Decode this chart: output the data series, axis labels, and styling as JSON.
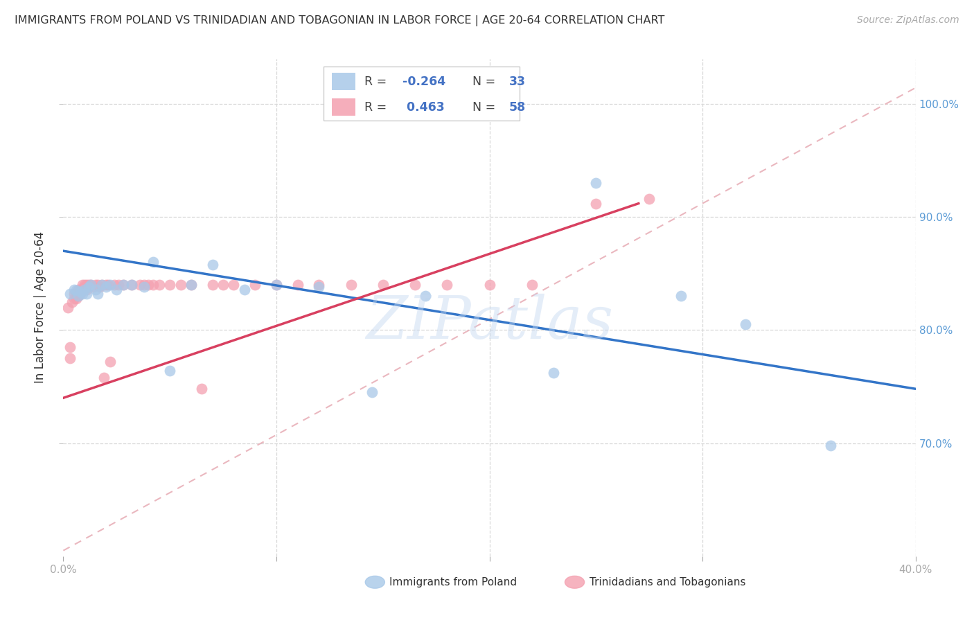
{
  "title": "IMMIGRANTS FROM POLAND VS TRINIDADIAN AND TOBAGONIAN IN LABOR FORCE | AGE 20-64 CORRELATION CHART",
  "source": "Source: ZipAtlas.com",
  "ylabel": "In Labor Force | Age 20-64",
  "xlim": [
    0.0,
    0.4
  ],
  "ylim": [
    0.6,
    1.04
  ],
  "ytick_positions": [
    0.7,
    0.8,
    0.9,
    1.0
  ],
  "ytick_labels": [
    "70.0%",
    "80.0%",
    "90.0%",
    "100.0%"
  ],
  "xtick_positions": [
    0.0,
    0.1,
    0.2,
    0.3,
    0.4
  ],
  "xtick_left_label": "0.0%",
  "xtick_right_label": "40.0%",
  "poland_R": -0.264,
  "poland_N": 33,
  "tnt_R": 0.463,
  "tnt_N": 58,
  "poland_color": "#a8c8e8",
  "tnt_color": "#f4a0b0",
  "poland_line_color": "#3375c8",
  "tnt_line_color": "#d84060",
  "diagonal_color": "#e8b0b8",
  "watermark": "ZIPatlas",
  "legend_label_poland": "Immigrants from Poland",
  "legend_label_tnt": "Trinidadians and Tobagonians",
  "poland_line_x0": 0.0,
  "poland_line_y0": 0.87,
  "poland_line_x1": 0.4,
  "poland_line_y1": 0.748,
  "tnt_line_x0": 0.0,
  "tnt_line_y0": 0.74,
  "tnt_line_x1": 0.27,
  "tnt_line_y1": 0.912,
  "poland_x": [
    0.003,
    0.005,
    0.006,
    0.007,
    0.008,
    0.009,
    0.01,
    0.011,
    0.012,
    0.013,
    0.015,
    0.016,
    0.018,
    0.02,
    0.022,
    0.025,
    0.028,
    0.032,
    0.038,
    0.042,
    0.05,
    0.06,
    0.07,
    0.085,
    0.1,
    0.12,
    0.145,
    0.17,
    0.23,
    0.25,
    0.29,
    0.32,
    0.36
  ],
  "poland_y": [
    0.832,
    0.836,
    0.835,
    0.83,
    0.834,
    0.832,
    0.836,
    0.832,
    0.838,
    0.84,
    0.836,
    0.832,
    0.84,
    0.838,
    0.84,
    0.836,
    0.84,
    0.84,
    0.838,
    0.86,
    0.764,
    0.84,
    0.858,
    0.836,
    0.84,
    0.838,
    0.745,
    0.83,
    0.762,
    0.93,
    0.83,
    0.805,
    0.698
  ],
  "tnt_x": [
    0.002,
    0.003,
    0.003,
    0.004,
    0.005,
    0.005,
    0.006,
    0.006,
    0.007,
    0.007,
    0.008,
    0.008,
    0.009,
    0.009,
    0.01,
    0.01,
    0.011,
    0.011,
    0.012,
    0.012,
    0.013,
    0.014,
    0.015,
    0.016,
    0.017,
    0.018,
    0.019,
    0.02,
    0.021,
    0.022,
    0.024,
    0.026,
    0.028,
    0.032,
    0.036,
    0.038,
    0.04,
    0.042,
    0.045,
    0.05,
    0.055,
    0.06,
    0.065,
    0.07,
    0.075,
    0.08,
    0.09,
    0.1,
    0.11,
    0.12,
    0.135,
    0.15,
    0.165,
    0.18,
    0.2,
    0.22,
    0.25,
    0.275
  ],
  "tnt_y": [
    0.82,
    0.785,
    0.775,
    0.825,
    0.832,
    0.828,
    0.832,
    0.828,
    0.836,
    0.83,
    0.836,
    0.832,
    0.84,
    0.836,
    0.84,
    0.838,
    0.836,
    0.84,
    0.84,
    0.838,
    0.84,
    0.838,
    0.84,
    0.84,
    0.838,
    0.84,
    0.758,
    0.84,
    0.84,
    0.772,
    0.84,
    0.84,
    0.84,
    0.84,
    0.84,
    0.84,
    0.84,
    0.84,
    0.84,
    0.84,
    0.84,
    0.84,
    0.748,
    0.84,
    0.84,
    0.84,
    0.84,
    0.84,
    0.84,
    0.84,
    0.84,
    0.84,
    0.84,
    0.84,
    0.84,
    0.84,
    0.912,
    0.916
  ],
  "background_color": "#ffffff",
  "grid_color": "#d8d8d8",
  "tick_color_right": "#5b9bd5",
  "tick_color_bottom": "#555555",
  "legend_R_color": "#4472c4",
  "legend_N_color": "#4472c4"
}
